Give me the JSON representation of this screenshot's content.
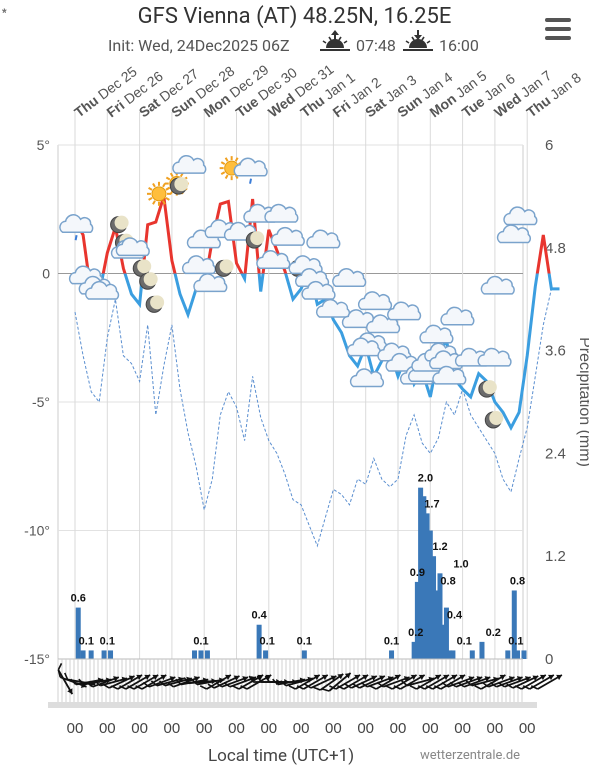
{
  "title": "GFS Vienna (AT) 48.25N, 16.25E",
  "init": "Init: Wed, 24Dec2025 06Z",
  "sunrise": "07:48",
  "sunset": "16:00",
  "footer_left": "Local time (UTC+1)",
  "footer_right": "wetterzentrale.de",
  "chart_data": {
    "type": "line",
    "temp_axis": {
      "ticks": [
        "5°",
        "0",
        "-5°",
        "-10°",
        "-15°"
      ],
      "values": [
        5,
        0,
        -5,
        -10,
        -15
      ],
      "range": [
        -15,
        5
      ]
    },
    "precip_axis": {
      "label": "Precipitation (mm)",
      "ticks": [
        "6",
        "4.8",
        "3.6",
        "2.4",
        "1.2",
        "0"
      ],
      "values": [
        6,
        4.8,
        3.6,
        2.4,
        1.2,
        0
      ],
      "range": [
        0,
        6
      ]
    },
    "day_labels": [
      {
        "dow": "Thu",
        "date": "Dec 25"
      },
      {
        "dow": "Fri",
        "date": "Dec 26"
      },
      {
        "dow": "Sat",
        "date": "Dec 27"
      },
      {
        "dow": "Sun",
        "date": "Dec 28"
      },
      {
        "dow": "Mon",
        "date": "Dec 29"
      },
      {
        "dow": "Tue",
        "date": "Dec 30"
      },
      {
        "dow": "Wed",
        "date": "Dec 31"
      },
      {
        "dow": "Thu",
        "date": "Jan 1"
      },
      {
        "dow": "Fri",
        "date": "Jan 2"
      },
      {
        "dow": "Sat",
        "date": "Jan 3"
      },
      {
        "dow": "Sun",
        "date": "Jan 4"
      },
      {
        "dow": "Mon",
        "date": "Jan 5"
      },
      {
        "dow": "Tue",
        "date": "Jan 6"
      },
      {
        "dow": "Wed",
        "date": "Jan 7"
      },
      {
        "dow": "Thu",
        "date": "Jan 8"
      }
    ],
    "hour_labels": [
      "00",
      "00",
      "00",
      "00",
      "00",
      "00",
      "00",
      "00",
      "00",
      "00",
      "00",
      "00",
      "00",
      "00",
      "00"
    ],
    "series": [
      {
        "name": "temperature",
        "x": [
          0,
          0.25,
          0.5,
          0.75,
          1,
          1.25,
          1.5,
          1.75,
          2,
          2.25,
          2.5,
          2.75,
          3,
          3.25,
          3.5,
          3.75,
          4,
          4.25,
          4.5,
          4.75,
          5,
          5.25,
          5.5,
          5.75,
          6,
          6.25,
          6.5,
          6.75,
          7,
          7.25,
          7.5,
          7.75,
          8,
          8.25,
          8.5,
          8.75,
          9,
          9.25,
          9.5,
          9.75,
          10,
          10.25,
          10.5,
          10.75,
          11,
          11.25,
          11.5,
          11.75,
          12,
          12.25,
          12.5,
          12.75,
          13,
          13.25,
          13.5,
          13.75,
          14,
          14.25,
          14.5,
          14.75,
          15
        ],
        "y": [
          2.1,
          1.5,
          -0.8,
          -0.8,
          0.8,
          1.8,
          0.2,
          -0.8,
          -1.2,
          1.9,
          2.0,
          3.0,
          0.5,
          -0.8,
          -1.6,
          -0.6,
          -0.5,
          1.3,
          2.7,
          2.8,
          0.4,
          -0.2,
          2.9,
          -0.7,
          1.7,
          0.9,
          0.1,
          -1.0,
          -0.6,
          0.2,
          -1.2,
          -1.0,
          -1.8,
          -2.3,
          -3.2,
          -3.6,
          -2.8,
          -4.0,
          -3.4,
          -3.0,
          -4.0,
          -3.2,
          -4.3,
          -3.8,
          -4.8,
          -3.2,
          -2.6,
          -4.1,
          -4.5,
          -4.8,
          -3.9,
          -4.2,
          -5.0,
          -5.4,
          -6.0,
          -5.4,
          -3.2,
          -0.5,
          1.5,
          -0.6,
          -0.6
        ]
      },
      {
        "name": "dewpoint",
        "x": [
          0,
          0.25,
          0.5,
          0.75,
          1,
          1.25,
          1.5,
          1.75,
          2,
          2.25,
          2.5,
          2.75,
          3,
          3.25,
          3.5,
          3.75,
          4,
          4.25,
          4.5,
          4.75,
          5,
          5.25,
          5.5,
          5.75,
          6,
          6.25,
          6.5,
          6.75,
          7,
          7.25,
          7.5,
          7.75,
          8,
          8.25,
          8.5,
          8.75,
          9,
          9.25,
          9.5,
          9.75,
          10,
          10.25,
          10.5,
          10.75,
          11,
          11.25,
          11.5,
          11.75,
          12,
          12.25,
          12.5,
          12.75,
          13,
          13.25,
          13.5,
          13.75,
          14,
          14.25,
          14.5,
          14.75,
          15
        ],
        "y": [
          -1.5,
          -3.2,
          -4.6,
          -5.0,
          -2.5,
          -1.0,
          -3.2,
          -3.5,
          -4.2,
          -2.0,
          -5.5,
          -3.6,
          -2.0,
          -4.5,
          -6.2,
          -7.5,
          -9.2,
          -8.0,
          -5.5,
          -4.6,
          -5.2,
          -6.5,
          -4.0,
          -5.6,
          -6.5,
          -7.0,
          -7.8,
          -8.8,
          -9.0,
          -9.8,
          -10.6,
          -9.5,
          -8.4,
          -8.6,
          -9.0,
          -8.0,
          -8.2,
          -7.2,
          -8.0,
          -8.3,
          -8.0,
          -6.3,
          -5.5,
          -6.6,
          -7.0,
          -6.4,
          -5.0,
          -5.5,
          -4.5,
          -5.5,
          -6.0,
          -6.5,
          -7.0,
          -8.0,
          -8.5,
          -7.2,
          -6.0,
          -4.0,
          -2.0,
          -0.6,
          -0.6
        ]
      }
    ],
    "precip_bars": {
      "x": [
        0.1,
        0.25,
        0.5,
        0.9,
        1.1,
        3.7,
        3.9,
        4.1,
        5.7,
        5.9,
        7.1,
        9.8,
        10.5,
        10.6,
        10.7,
        10.8,
        10.9,
        11.0,
        11.1,
        11.2,
        11.3,
        11.4,
        11.5,
        11.6,
        11.7,
        12.3,
        12.6,
        13.4,
        13.6,
        13.7,
        13.9
      ],
      "values": [
        0.6,
        0.1,
        0.1,
        0.1,
        0.1,
        0.1,
        0.1,
        0.1,
        0.4,
        0.1,
        0.1,
        0.1,
        0.2,
        0.9,
        2.0,
        1.9,
        1.7,
        1.5,
        1.2,
        0.8,
        1.0,
        0.4,
        0.6,
        0.1,
        0.1,
        0.1,
        0.2,
        0.1,
        0.8,
        0.1,
        0.1
      ]
    },
    "precip_labels": [
      {
        "x": 0.1,
        "v": "0.6"
      },
      {
        "x": 0.35,
        "v": "0.1"
      },
      {
        "x": 1.0,
        "v": "0.1"
      },
      {
        "x": 3.9,
        "v": "0.1"
      },
      {
        "x": 5.7,
        "v": "0.4"
      },
      {
        "x": 5.95,
        "v": "0.1"
      },
      {
        "x": 7.1,
        "v": "0.1"
      },
      {
        "x": 9.8,
        "v": "0.1"
      },
      {
        "x": 10.55,
        "v": "0.2"
      },
      {
        "x": 10.6,
        "v": "0.9"
      },
      {
        "x": 10.85,
        "v": "2.0"
      },
      {
        "x": 11.05,
        "v": "1.7"
      },
      {
        "x": 11.3,
        "v": "1.2"
      },
      {
        "x": 11.55,
        "v": "0.8"
      },
      {
        "x": 11.95,
        "v": "1.0"
      },
      {
        "x": 11.75,
        "v": "0.4"
      },
      {
        "x": 12.05,
        "v": "0.1"
      },
      {
        "x": 12.95,
        "v": "0.2"
      },
      {
        "x": 13.7,
        "v": "0.8"
      },
      {
        "x": 13.65,
        "v": "0.1"
      }
    ],
    "wind_barb_angles": [
      240,
      200,
      190,
      170,
      170,
      160,
      165,
      155,
      150,
      150,
      150,
      150,
      160,
      165,
      165,
      160,
      170,
      175,
      170,
      150,
      155,
      160,
      160,
      150,
      150,
      180,
      180,
      180,
      170,
      165,
      150,
      150,
      155,
      145,
      140,
      150,
      150,
      155,
      155,
      160,
      150,
      160,
      150,
      150,
      165,
      150,
      150,
      150,
      150,
      160,
      160,
      160,
      165,
      150,
      160,
      160,
      160,
      155,
      150,
      150,
      150
    ],
    "weather_icons": [
      {
        "x": 0.05,
        "y": 1.8,
        "icon": "rain-cloud-icon"
      },
      {
        "x": 0.35,
        "y": -0.2,
        "icon": "cloud-icon"
      },
      {
        "x": 0.65,
        "y": -0.6,
        "icon": "cloud-icon"
      },
      {
        "x": 0.85,
        "y": -0.8,
        "icon": "cloud-icon"
      },
      {
        "x": 1.35,
        "y": 1.9,
        "icon": "moon-icon"
      },
      {
        "x": 1.5,
        "y": 1.2,
        "icon": "moon-icon"
      },
      {
        "x": 1.65,
        "y": 0.8,
        "icon": "cloud-icon"
      },
      {
        "x": 1.8,
        "y": 0.9,
        "icon": "cloud-icon"
      },
      {
        "x": 2.05,
        "y": 0.2,
        "icon": "moon-icon"
      },
      {
        "x": 2.25,
        "y": -0.3,
        "icon": "moon-icon"
      },
      {
        "x": 2.45,
        "y": -1.2,
        "icon": "moon-icon"
      },
      {
        "x": 2.6,
        "y": 3.1,
        "icon": "sun-icon"
      },
      {
        "x": 3.15,
        "y": 3.5,
        "icon": "sun-icon"
      },
      {
        "x": 3.2,
        "y": 3.4,
        "icon": "moon-icon"
      },
      {
        "x": 3.55,
        "y": 4.1,
        "icon": "cloud-icon"
      },
      {
        "x": 4.0,
        "y": 1.2,
        "icon": "cloud-icon"
      },
      {
        "x": 3.85,
        "y": 0.2,
        "icon": "cloud-icon"
      },
      {
        "x": 4.2,
        "y": -0.5,
        "icon": "cloud-icon"
      },
      {
        "x": 4.6,
        "y": 0.2,
        "icon": "moon-icon"
      },
      {
        "x": 4.85,
        "y": 4.1,
        "icon": "sun-icon"
      },
      {
        "x": 4.55,
        "y": 1.6,
        "icon": "cloud-icon"
      },
      {
        "x": 5.15,
        "y": 1.5,
        "icon": "cloud-icon"
      },
      {
        "x": 5.45,
        "y": 4.0,
        "icon": "rain-cloud-icon"
      },
      {
        "x": 5.55,
        "y": 1.3,
        "icon": "moon-icon"
      },
      {
        "x": 5.75,
        "y": 2.2,
        "icon": "cloud-icon"
      },
      {
        "x": 6.15,
        "y": 0.4,
        "icon": "cloud-icon"
      },
      {
        "x": 6.4,
        "y": 2.2,
        "icon": "cloud-icon"
      },
      {
        "x": 6.6,
        "y": 1.3,
        "icon": "cloud-icon"
      },
      {
        "x": 6.9,
        "y": 0.2,
        "icon": "moon-icon"
      },
      {
        "x": 7.15,
        "y": 0.2,
        "icon": "cloud-icon"
      },
      {
        "x": 7.35,
        "y": -0.3,
        "icon": "cloud-icon"
      },
      {
        "x": 7.55,
        "y": -0.8,
        "icon": "cloud-icon"
      },
      {
        "x": 7.7,
        "y": 1.2,
        "icon": "cloud-icon"
      },
      {
        "x": 8.0,
        "y": -1.5,
        "icon": "cloud-icon"
      },
      {
        "x": 8.5,
        "y": -0.3,
        "icon": "cloud-icon"
      },
      {
        "x": 8.8,
        "y": -1.9,
        "icon": "cloud-icon"
      },
      {
        "x": 9.15,
        "y": -2.8,
        "icon": "cloud-icon"
      },
      {
        "x": 9.3,
        "y": -1.2,
        "icon": "cloud-icon"
      },
      {
        "x": 9.55,
        "y": -2.1,
        "icon": "cloud-icon"
      },
      {
        "x": 8.95,
        "y": -3.0,
        "icon": "cloud-icon"
      },
      {
        "x": 9.05,
        "y": -4.2,
        "icon": "cloud-icon"
      },
      {
        "x": 9.9,
        "y": -3.2,
        "icon": "cloud-icon"
      },
      {
        "x": 10.2,
        "y": -1.6,
        "icon": "cloud-icon"
      },
      {
        "x": 10.15,
        "y": -3.6,
        "icon": "cloud-icon"
      },
      {
        "x": 10.6,
        "y": -4.1,
        "icon": "snow-cloud-icon"
      },
      {
        "x": 10.85,
        "y": -4.0,
        "icon": "snow-cloud-icon"
      },
      {
        "x": 10.95,
        "y": -3.6,
        "icon": "snow-cloud-icon"
      },
      {
        "x": 11.2,
        "y": -2.5,
        "icon": "snow-cloud-icon"
      },
      {
        "x": 11.35,
        "y": -3.2,
        "icon": "snow-cloud-icon"
      },
      {
        "x": 11.5,
        "y": -3.5,
        "icon": "snow-cloud-icon"
      },
      {
        "x": 11.6,
        "y": -4.1,
        "icon": "snow-cloud-icon"
      },
      {
        "x": 11.85,
        "y": -1.8,
        "icon": "cloud-icon"
      },
      {
        "x": 12.3,
        "y": -3.4,
        "icon": "cloud-icon"
      },
      {
        "x": 12.75,
        "y": -4.5,
        "icon": "moon-icon"
      },
      {
        "x": 13.0,
        "y": -3.4,
        "icon": "cloud-icon"
      },
      {
        "x": 12.95,
        "y": -5.7,
        "icon": "moon-icon"
      },
      {
        "x": 13.1,
        "y": -0.6,
        "icon": "cloud-icon"
      },
      {
        "x": 13.6,
        "y": 1.4,
        "icon": "snow-cloud-icon"
      },
      {
        "x": 13.8,
        "y": 2.1,
        "icon": "cloud-icon"
      }
    ]
  }
}
